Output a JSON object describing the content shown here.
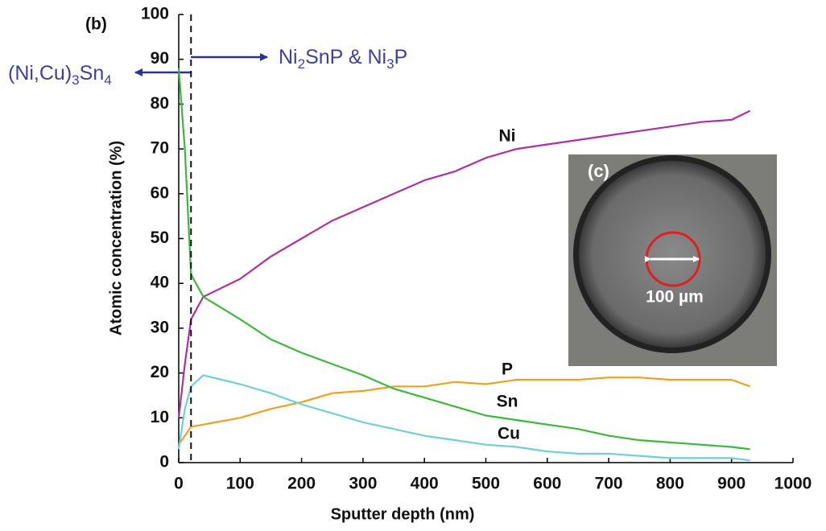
{
  "chart_data": {
    "type": "line",
    "panel_label": "(b)",
    "x_label": "Sputter depth (nm)",
    "y_label": "Atomic concentration (%)",
    "xlim": [
      0,
      1000
    ],
    "ylim": [
      0,
      100
    ],
    "xticks": [
      0,
      100,
      200,
      300,
      400,
      500,
      600,
      700,
      800,
      900,
      1000
    ],
    "yticks": [
      0,
      10,
      20,
      30,
      40,
      50,
      60,
      70,
      80,
      90,
      100
    ],
    "x": [
      0,
      10,
      20,
      40,
      100,
      150,
      200,
      250,
      300,
      350,
      400,
      450,
      500,
      550,
      600,
      650,
      700,
      750,
      800,
      850,
      900,
      930
    ],
    "series": [
      {
        "name": "Ni",
        "color": "#b0309e",
        "values": [
          10,
          22,
          32,
          37,
          41,
          46,
          50,
          54,
          57,
          60,
          63,
          65,
          68,
          70,
          71,
          72,
          73,
          74,
          75,
          76,
          76.5,
          78.5
        ]
      },
      {
        "name": "P",
        "color": "#f0a020",
        "values": [
          4,
          6,
          8,
          8.5,
          10,
          12,
          13.5,
          15.5,
          16,
          17,
          17,
          18,
          17.5,
          18.5,
          18.5,
          18.5,
          19,
          19,
          18.5,
          18.5,
          18.5,
          17
        ]
      },
      {
        "name": "Sn",
        "color": "#3cb83c",
        "values": [
          88,
          70,
          42,
          37,
          32,
          27.5,
          24.5,
          22,
          19.5,
          16.5,
          14.5,
          12.5,
          10.5,
          9.5,
          8.5,
          7.5,
          6,
          5,
          4.5,
          4,
          3.5,
          3
        ]
      },
      {
        "name": "Cu",
        "color": "#6fd0d8",
        "values": [
          3,
          12,
          17,
          19.5,
          17.5,
          15.5,
          13,
          11,
          9,
          7.5,
          6,
          5,
          4,
          3.5,
          2.5,
          2,
          2,
          1.5,
          1,
          1,
          1,
          0.5
        ]
      }
    ],
    "boundary_x": 20,
    "annotations": [
      {
        "parts": [
          {
            "text": "(Ni,Cu)"
          },
          {
            "text": "3",
            "sub": true
          },
          {
            "text": "Sn"
          },
          {
            "text": "4",
            "sub": true
          }
        ]
      },
      {
        "parts": [
          {
            "text": "Ni"
          },
          {
            "text": "2",
            "sub": true
          },
          {
            "text": "SnP & Ni"
          },
          {
            "text": "3",
            "sub": true
          },
          {
            "text": "P"
          }
        ]
      }
    ],
    "inset": {
      "label": "(c)",
      "scale_label": "100 µm"
    }
  }
}
